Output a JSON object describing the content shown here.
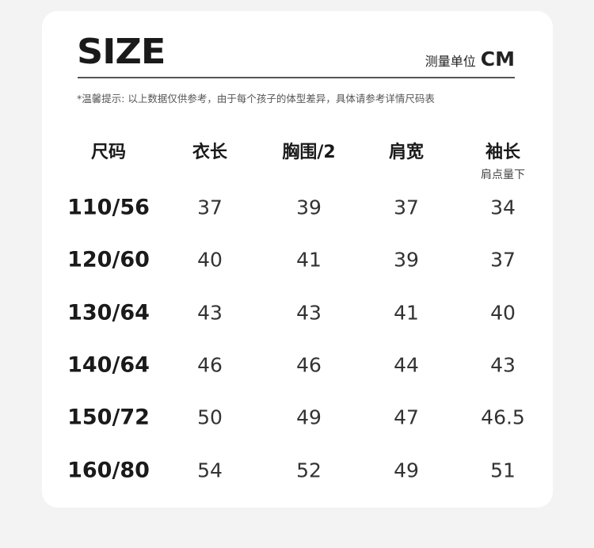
{
  "logo_text": "SIZE",
  "unit": {
    "label": "测量单位",
    "value": "CM"
  },
  "tip": "*温馨提示: 以上数据仅供参考，由于每个孩子的体型差异，具体请参考详情尺码表",
  "headers": [
    "尺码",
    "衣长",
    "胸围/2",
    "肩宽",
    "袖长"
  ],
  "sleeve_note": "肩点量下",
  "rows": [
    [
      "110/56",
      "37",
      "39",
      "37",
      "34"
    ],
    [
      "120/60",
      "40",
      "41",
      "39",
      "37"
    ],
    [
      "130/64",
      "43",
      "43",
      "41",
      "40"
    ],
    [
      "140/64",
      "46",
      "46",
      "44",
      "43"
    ],
    [
      "150/72",
      "50",
      "49",
      "47",
      "46.5"
    ],
    [
      "160/80",
      "54",
      "52",
      "49",
      "51"
    ]
  ]
}
